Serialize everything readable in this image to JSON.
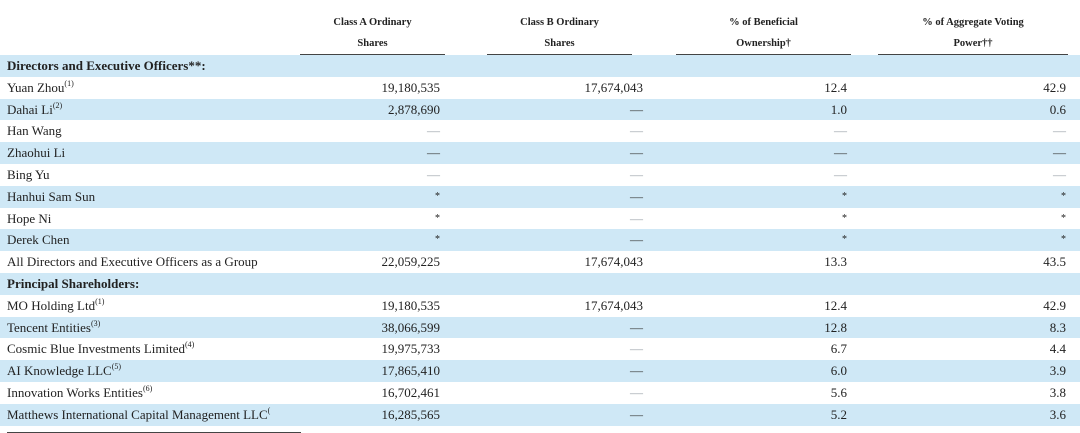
{
  "headers": [
    {
      "line1": "Class A Ordinary",
      "line2": "Shares"
    },
    {
      "line1": "Class B Ordinary",
      "line2": "Shares"
    },
    {
      "line1": "% of Beneficial",
      "line2": "Ownership†"
    },
    {
      "line1": "% of Aggregate Voting",
      "line2": "Power††"
    }
  ],
  "rows": [
    {
      "type": "section",
      "label": "Directors and Executive Officers**:",
      "shade": true
    },
    {
      "label": "Yuan Zhou",
      "sup": "(1)",
      "a": "19,180,535",
      "b": "17,674,043",
      "c": "12.4",
      "d": "42.9",
      "shade": false
    },
    {
      "label": "Dahai Li",
      "sup": "(2)",
      "a": "2,878,690",
      "b": "—",
      "c": "1.0",
      "d": "0.6",
      "shade": true
    },
    {
      "label": "Han Wang",
      "sup": "",
      "a": "—",
      "b": "—",
      "c": "—",
      "d": "—",
      "shade": false
    },
    {
      "label": "Zhaohui Li",
      "sup": "",
      "a": "—",
      "b": "—",
      "c": "—",
      "d": "—",
      "shade": true
    },
    {
      "label": "Bing Yu",
      "sup": "",
      "a": "—",
      "b": "—",
      "c": "—",
      "d": "—",
      "shade": false
    },
    {
      "label": "Hanhui Sam Sun",
      "sup": "",
      "a": "*",
      "b": "—",
      "c": "*",
      "d": "*",
      "shade": true
    },
    {
      "label": "Hope Ni",
      "sup": "",
      "a": "*",
      "b": "—",
      "c": "*",
      "d": "*",
      "shade": false
    },
    {
      "label": "Derek Chen",
      "sup": "",
      "a": "*",
      "b": "—",
      "c": "*",
      "d": "*",
      "shade": true
    },
    {
      "label": "All Directors and Executive Officers as a Group",
      "sup": "",
      "a": "22,059,225",
      "b": "17,674,043",
      "c": "13.3",
      "d": "43.5",
      "shade": false
    },
    {
      "type": "section",
      "label": "Principal Shareholders:",
      "shade": true
    },
    {
      "label": "MO Holding Ltd",
      "sup": "(1)",
      "a": "19,180,535",
      "b": "17,674,043",
      "c": "12.4",
      "d": "42.9",
      "shade": false
    },
    {
      "label": "Tencent Entities",
      "sup": "(3)",
      "a": "38,066,599",
      "b": "—",
      "c": "12.8",
      "d": "8.3",
      "shade": true
    },
    {
      "label": "Cosmic Blue Investments Limited",
      "sup": "(4)",
      "a": "19,975,733",
      "b": "—",
      "c": "6.7",
      "d": "4.4",
      "shade": false
    },
    {
      "label": "AI Knowledge LLC",
      "sup": "(5)",
      "a": "17,865,410",
      "b": "—",
      "c": "6.0",
      "d": "3.9",
      "shade": true
    },
    {
      "label": "Innovation Works Entities",
      "sup": "(6)",
      "a": "16,702,461",
      "b": "—",
      "c": "5.6",
      "d": "3.8",
      "shade": false
    },
    {
      "label": "Matthews International Capital Management LLC",
      "sup": "(",
      "a": "16,285,565",
      "b": "—",
      "c": "5.2",
      "d": "3.6",
      "shade": true
    }
  ]
}
